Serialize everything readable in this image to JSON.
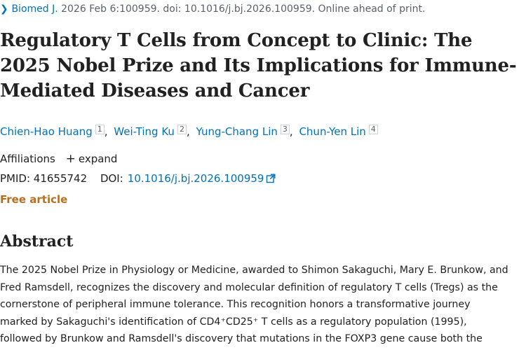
{
  "citation": {
    "journal": "Biomed J.",
    "details": " 2026 Feb 6:100959. doi: 10.1016/j.bj.2026.100959. Online ahead of print."
  },
  "article": {
    "title": "Regulatory T Cells from Concept to Clinic: The 2025 Nobel Prize and Its Implications for Immune-Mediated Diseases and Cancer"
  },
  "authors": [
    {
      "name": "Chien-Hao Huang",
      "affiliation": "1"
    },
    {
      "name": "Wei-Ting Ku",
      "affiliation": "2"
    },
    {
      "name": "Yung-Chang Lin",
      "affiliation": "3"
    },
    {
      "name": "Chun-Yen Lin",
      "affiliation": "4"
    }
  ],
  "affiliations": {
    "label": "Affiliations",
    "expand_label": "expand"
  },
  "identifiers": {
    "pmid_label": "PMID:",
    "pmid": "41655742",
    "doi_label": "DOI:",
    "doi": "10.1016/j.bj.2026.100959"
  },
  "access": {
    "label": "Free article"
  },
  "abstract": {
    "heading": "Abstract",
    "lines": [
      "The 2025 Nobel Prize in Physiology or Medicine, awarded to Shimon Sakaguchi, Mary E. Brunkow, and",
      "Fred Ramsdell, recognizes the discovery and molecular definition of regulatory T cells (Tregs) as the",
      "cornerstone of peripheral immune tolerance. This recognition honors a transformative journey",
      "marked by Sakaguchi's identification of CD4⁺CD25⁺ T cells as a regulatory population (1995),",
      "followed by Brunkow and Ramsdell's discovery that mutations in the FOXP3 gene cause both the"
    ]
  },
  "colors": {
    "link": "#0071bc",
    "free_article": "#b86e1e",
    "text": "#212121",
    "muted": "#5b616b"
  },
  "icons": {
    "citation_chevron": "chevron-right-icon",
    "expand": "plus-icon",
    "doi_external": "external-link-icon"
  }
}
